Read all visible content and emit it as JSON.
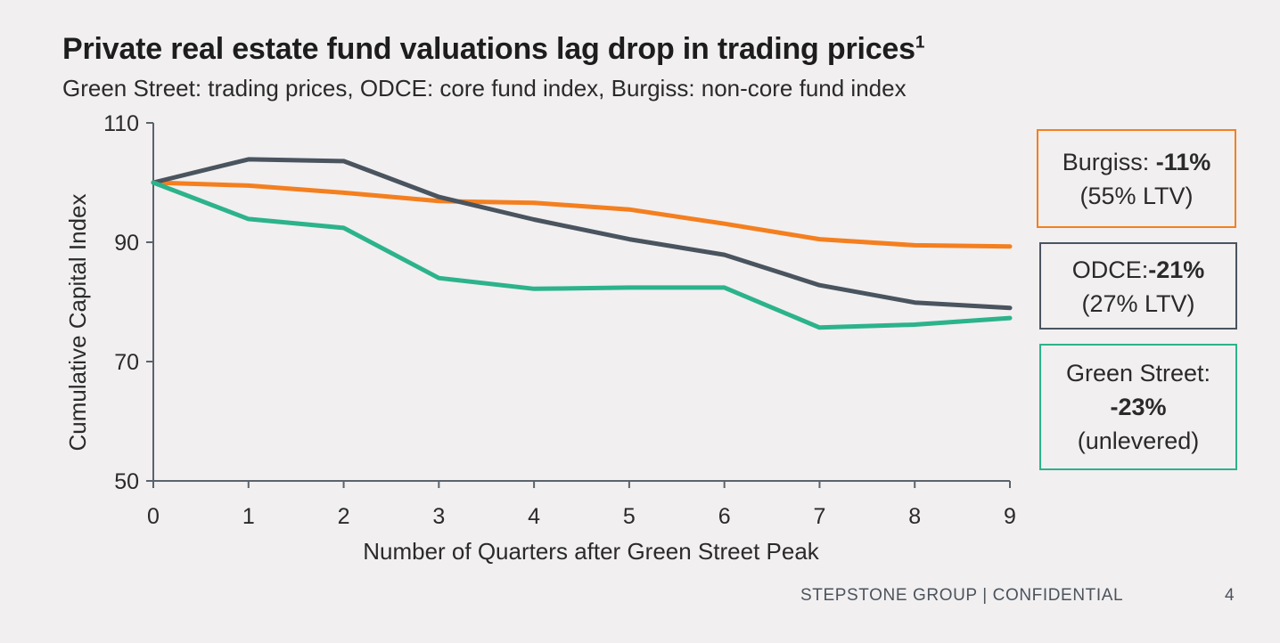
{
  "title": "Private real estate fund valuations lag drop in trading prices",
  "title_sup": "1",
  "subtitle": "Green Street: trading prices, ODCE: core fund index, Burgiss: non-core fund index",
  "legend": {
    "burgiss": {
      "name": "Burgiss:",
      "value": "-11%",
      "note": "(55% LTV)",
      "color": "#f47f1f"
    },
    "odce": {
      "name": "ODCE:",
      "value": "-21%",
      "note": "(27% LTV)",
      "color": "#4a545f"
    },
    "green_street": {
      "name": "Green Street:",
      "value": "-23%",
      "note": "(unlevered)",
      "color": "#2cb38b"
    }
  },
  "footer": {
    "text": "STEPSTONE GROUP  |  CONFIDENTIAL",
    "page": "4"
  },
  "chart_data": {
    "type": "line",
    "xlabel": "Number of Quarters after Green Street Peak",
    "ylabel": "Cumulative Capital Index",
    "x": [
      0,
      1,
      2,
      3,
      4,
      5,
      6,
      7,
      8,
      9
    ],
    "xlim": [
      0,
      9
    ],
    "ylim": [
      50,
      110
    ],
    "yticks": [
      50,
      70,
      90,
      110
    ],
    "grid": false,
    "legend_position": "right",
    "series": [
      {
        "name": "Burgiss",
        "color": "#f47f1f",
        "values": [
          100,
          99.5,
          98.3,
          96.9,
          96.6,
          95.5,
          93.1,
          90.5,
          89.5,
          89.3
        ]
      },
      {
        "name": "ODCE",
        "color": "#4a545f",
        "values": [
          100,
          103.9,
          103.6,
          97.6,
          93.8,
          90.5,
          87.9,
          82.8,
          79.9,
          79.0
        ]
      },
      {
        "name": "Green Street",
        "color": "#2cb38b",
        "values": [
          100,
          93.9,
          92.4,
          84.0,
          82.2,
          82.4,
          82.4,
          75.7,
          76.2,
          77.3
        ]
      }
    ]
  }
}
